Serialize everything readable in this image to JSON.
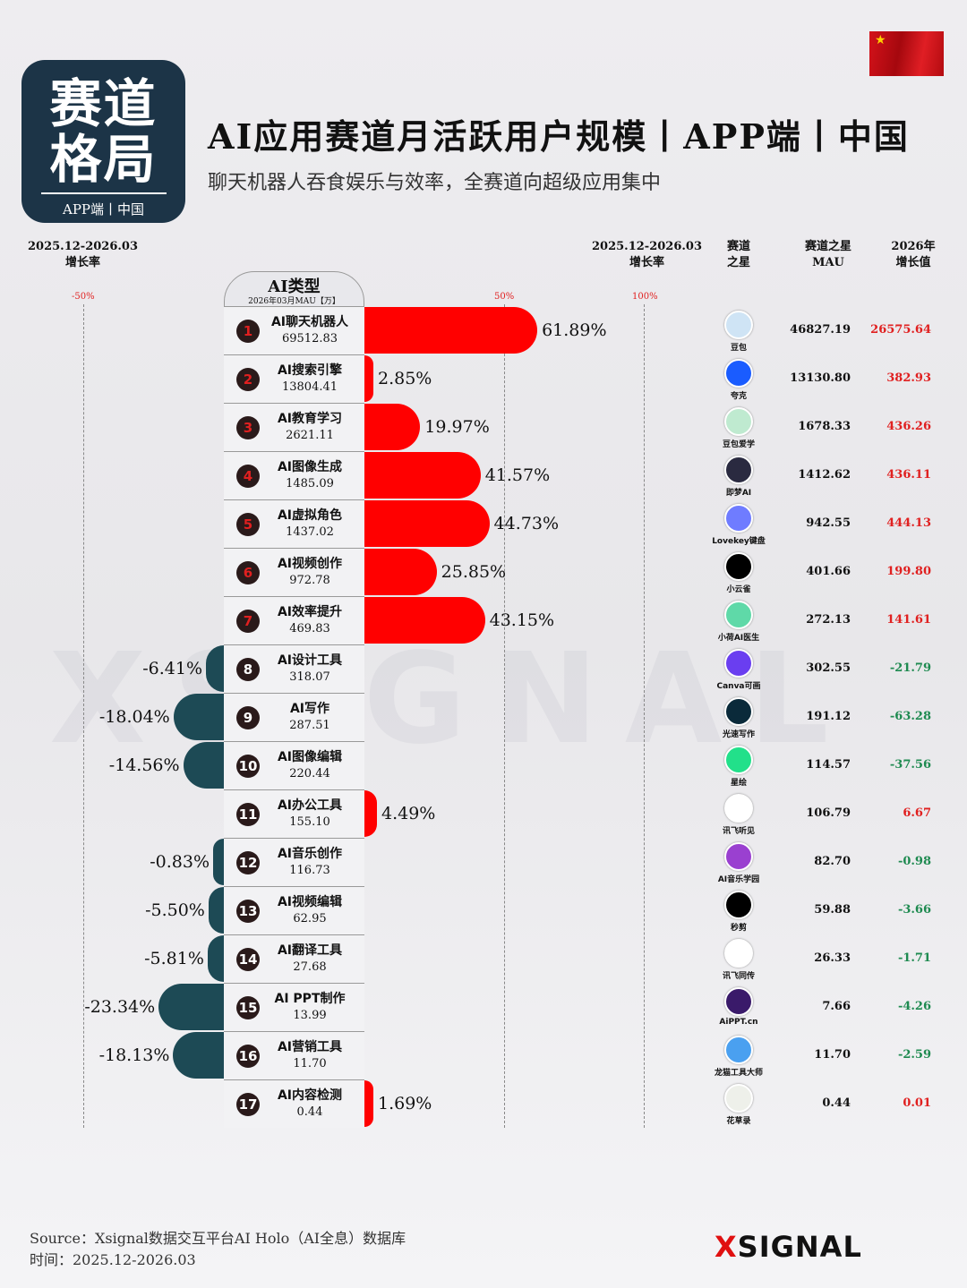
{
  "badge": {
    "line1": "赛道",
    "line2": "格局",
    "sub": "APP端丨中国"
  },
  "header": {
    "title": "AI应用赛道月活跃用户规模丨APP端丨中国",
    "subtitle": "聊天机器人吞食娱乐与效率，全赛道向超级应用集中",
    "flag": "★"
  },
  "columns": {
    "left_growth": "2025.12-2026.03\n增长率",
    "right_growth": "2025.12-2026.03\n增长率",
    "star": "赛道\n之星",
    "star_mau": "赛道之星\nMAU",
    "growth_value": "2026年\n增长值"
  },
  "colors": {
    "positive": "#ff0000",
    "negative": "#1d4a55",
    "positive_text": "#e02020",
    "negative_text": "#1e8a50"
  },
  "chart_data": {
    "type": "bar",
    "orientation": "horizontal",
    "category_header": "AI类型",
    "value_header": "2026年03月MAU【万】",
    "axis_ticks": [
      "-50%",
      "50%",
      "100%"
    ],
    "xlim": [
      -50,
      100
    ],
    "categories": [
      "AI聊天机器人",
      "AI搜索引擎",
      "AI教育学习",
      "AI图像生成",
      "AI虚拟角色",
      "AI视频创作",
      "AI效率提升",
      "AI设计工具",
      "AI写作",
      "AI图像编辑",
      "AI办公工具",
      "AI音乐创作",
      "AI视频编辑",
      "AI翻译工具",
      "AI PPT制作",
      "AI营销工具",
      "AI内容检测"
    ],
    "mau": [
      "69512.83",
      "13804.41",
      "2621.11",
      "1485.09",
      "1437.02",
      "972.78",
      "469.83",
      "318.07",
      "287.51",
      "220.44",
      "155.10",
      "116.73",
      "62.95",
      "27.68",
      "13.99",
      "11.70",
      "0.44"
    ],
    "growth_pct": [
      61.89,
      2.85,
      19.97,
      41.57,
      44.73,
      25.85,
      43.15,
      -6.41,
      -18.04,
      -14.56,
      4.49,
      -0.83,
      -5.5,
      -5.81,
      -23.34,
      -18.13,
      1.69
    ],
    "growth_labels": [
      "61.89%",
      "2.85%",
      "19.97%",
      "41.57%",
      "44.73%",
      "25.85%",
      "43.15%",
      "-6.41%",
      "-18.04%",
      "-14.56%",
      "4.49%",
      "-0.83%",
      "-5.50%",
      "-5.81%",
      "-23.34%",
      "-18.13%",
      "1.69%"
    ],
    "star_apps": [
      "豆包",
      "夸克",
      "豆包爱学",
      "即梦AI",
      "Lovekey键盘",
      "小云雀",
      "小荷AI医生",
      "Canva可画",
      "光速写作",
      "星绘",
      "讯飞听见",
      "AI音乐学园",
      "秒剪",
      "讯飞同传",
      "AiPPT.cn",
      "龙猫工具大师",
      "花草录"
    ],
    "star_mau": [
      "46827.19",
      "13130.80",
      "1678.33",
      "1412.62",
      "942.55",
      "401.66",
      "272.13",
      "302.55",
      "191.12",
      "114.57",
      "106.79",
      "82.70",
      "59.88",
      "26.33",
      "7.66",
      "11.70",
      "0.44"
    ],
    "growth_value": [
      "26575.64",
      "382.93",
      "436.26",
      "436.11",
      "444.13",
      "199.80",
      "141.61",
      "-21.79",
      "-63.28",
      "-37.56",
      "6.67",
      "-0.98",
      "-3.66",
      "-1.71",
      "-4.26",
      "-2.59",
      "0.01"
    ],
    "app_icon_colors": [
      "#cfe4f5",
      "#1a5cff",
      "#bfead0",
      "#2a2a40",
      "#6f7cff",
      "#000000",
      "#5fd9a8",
      "#6a3ef0",
      "#0a2a3a",
      "#22e08a",
      "#ffffff",
      "#9a40d0",
      "#000000",
      "#ffffff",
      "#3a1a6a",
      "#4aa0f0",
      "#eef0ea"
    ]
  },
  "watermark": "XSIGNAL",
  "footer": {
    "source": "Source：Xsignal数据交互平台AI Holo（AI全息）数据库",
    "time": "时间：2025.12-2026.03",
    "logo_x": "X",
    "logo_text": "SIGNAL"
  }
}
